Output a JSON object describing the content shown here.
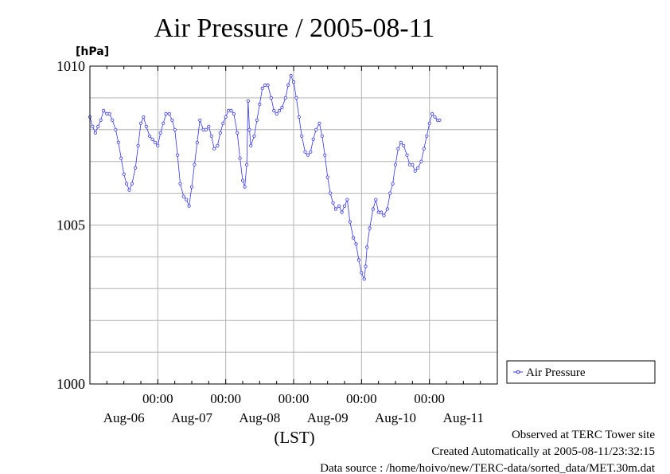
{
  "chart_data": {
    "type": "line",
    "title": "Air Pressure / 2005-08-11",
    "ylabel": "[hPa]",
    "xlabel": "(LST)",
    "ylim": [
      1000,
      1010
    ],
    "xlim": [
      0,
      6
    ],
    "y_ticks": [
      {
        "value": 1000,
        "label": "1000"
      },
      {
        "value": 1005,
        "label": "1005"
      },
      {
        "value": 1010,
        "label": "1010"
      }
    ],
    "y_minor_step": 1,
    "x_ticks": [
      {
        "value": 1,
        "label": "00:00"
      },
      {
        "value": 2,
        "label": "00:00"
      },
      {
        "value": 3,
        "label": "00:00"
      },
      {
        "value": 4,
        "label": "00:00"
      },
      {
        "value": 5,
        "label": "00:00"
      }
    ],
    "x_minor_step": 0.25,
    "day_labels": [
      {
        "value": 0.5,
        "label": "Aug-06"
      },
      {
        "value": 1.5,
        "label": "Aug-07"
      },
      {
        "value": 2.5,
        "label": "Aug-08"
      },
      {
        "value": 3.5,
        "label": "Aug-09"
      },
      {
        "value": 4.5,
        "label": "Aug-10"
      },
      {
        "value": 5.5,
        "label": "Aug-11"
      }
    ],
    "grid": true,
    "legend_position": "right",
    "series": [
      {
        "name": "Air Pressure",
        "color": "#3333ee",
        "points": [
          [
            0.0,
            1008.4
          ],
          [
            0.04,
            1008.1
          ],
          [
            0.08,
            1007.9
          ],
          [
            0.12,
            1008.1
          ],
          [
            0.16,
            1008.3
          ],
          [
            0.2,
            1008.6
          ],
          [
            0.25,
            1008.5
          ],
          [
            0.29,
            1008.5
          ],
          [
            0.33,
            1008.3
          ],
          [
            0.38,
            1008.0
          ],
          [
            0.42,
            1007.6
          ],
          [
            0.46,
            1007.1
          ],
          [
            0.5,
            1006.6
          ],
          [
            0.54,
            1006.3
          ],
          [
            0.58,
            1006.1
          ],
          [
            0.62,
            1006.3
          ],
          [
            0.67,
            1006.8
          ],
          [
            0.71,
            1007.5
          ],
          [
            0.75,
            1008.2
          ],
          [
            0.79,
            1008.4
          ],
          [
            0.83,
            1008.1
          ],
          [
            0.88,
            1007.8
          ],
          [
            0.92,
            1007.7
          ],
          [
            0.96,
            1007.6
          ],
          [
            1.0,
            1007.5
          ],
          [
            1.04,
            1007.9
          ],
          [
            1.08,
            1008.2
          ],
          [
            1.12,
            1008.5
          ],
          [
            1.17,
            1008.5
          ],
          [
            1.21,
            1008.3
          ],
          [
            1.25,
            1008.0
          ],
          [
            1.29,
            1007.2
          ],
          [
            1.33,
            1006.3
          ],
          [
            1.38,
            1005.9
          ],
          [
            1.42,
            1005.8
          ],
          [
            1.46,
            1005.6
          ],
          [
            1.5,
            1006.2
          ],
          [
            1.54,
            1006.9
          ],
          [
            1.58,
            1007.6
          ],
          [
            1.62,
            1008.3
          ],
          [
            1.67,
            1008.0
          ],
          [
            1.71,
            1008.0
          ],
          [
            1.75,
            1008.1
          ],
          [
            1.79,
            1007.8
          ],
          [
            1.83,
            1007.4
          ],
          [
            1.88,
            1007.5
          ],
          [
            1.92,
            1007.9
          ],
          [
            1.96,
            1008.2
          ],
          [
            2.0,
            1008.4
          ],
          [
            2.04,
            1008.6
          ],
          [
            2.08,
            1008.6
          ],
          [
            2.12,
            1008.5
          ],
          [
            2.17,
            1007.9
          ],
          [
            2.21,
            1007.1
          ],
          [
            2.25,
            1006.4
          ],
          [
            2.28,
            1006.2
          ],
          [
            2.31,
            1006.9
          ],
          [
            2.33,
            1008.9
          ],
          [
            2.35,
            1008.0
          ],
          [
            2.37,
            1007.5
          ],
          [
            2.42,
            1007.8
          ],
          [
            2.46,
            1008.3
          ],
          [
            2.5,
            1008.8
          ],
          [
            2.54,
            1009.3
          ],
          [
            2.58,
            1009.4
          ],
          [
            2.62,
            1009.4
          ],
          [
            2.67,
            1009.0
          ],
          [
            2.71,
            1008.6
          ],
          [
            2.75,
            1008.5
          ],
          [
            2.79,
            1008.6
          ],
          [
            2.83,
            1008.7
          ],
          [
            2.88,
            1009.0
          ],
          [
            2.92,
            1009.4
          ],
          [
            2.96,
            1009.7
          ],
          [
            3.0,
            1009.5
          ],
          [
            3.04,
            1009.0
          ],
          [
            3.08,
            1008.4
          ],
          [
            3.12,
            1007.8
          ],
          [
            3.17,
            1007.3
          ],
          [
            3.21,
            1007.2
          ],
          [
            3.25,
            1007.3
          ],
          [
            3.29,
            1007.7
          ],
          [
            3.33,
            1008.0
          ],
          [
            3.38,
            1008.2
          ],
          [
            3.42,
            1007.8
          ],
          [
            3.46,
            1007.2
          ],
          [
            3.5,
            1006.5
          ],
          [
            3.54,
            1006.0
          ],
          [
            3.58,
            1005.7
          ],
          [
            3.62,
            1005.5
          ],
          [
            3.67,
            1005.6
          ],
          [
            3.71,
            1005.4
          ],
          [
            3.75,
            1005.6
          ],
          [
            3.79,
            1005.8
          ],
          [
            3.83,
            1005.1
          ],
          [
            3.88,
            1004.6
          ],
          [
            3.92,
            1004.4
          ],
          [
            3.96,
            1003.9
          ],
          [
            4.0,
            1003.5
          ],
          [
            4.04,
            1003.3
          ],
          [
            4.06,
            1003.7
          ],
          [
            4.08,
            1004.3
          ],
          [
            4.12,
            1004.9
          ],
          [
            4.17,
            1005.5
          ],
          [
            4.21,
            1005.8
          ],
          [
            4.25,
            1005.4
          ],
          [
            4.29,
            1005.4
          ],
          [
            4.33,
            1005.3
          ],
          [
            4.38,
            1005.5
          ],
          [
            4.42,
            1006.0
          ],
          [
            4.46,
            1006.3
          ],
          [
            4.5,
            1006.9
          ],
          [
            4.54,
            1007.4
          ],
          [
            4.58,
            1007.6
          ],
          [
            4.62,
            1007.5
          ],
          [
            4.67,
            1007.2
          ],
          [
            4.71,
            1006.9
          ],
          [
            4.75,
            1006.9
          ],
          [
            4.79,
            1006.7
          ],
          [
            4.83,
            1006.8
          ],
          [
            4.88,
            1007.0
          ],
          [
            4.92,
            1007.4
          ],
          [
            4.96,
            1007.8
          ],
          [
            5.0,
            1008.2
          ],
          [
            5.04,
            1008.5
          ],
          [
            5.08,
            1008.4
          ],
          [
            5.12,
            1008.3
          ],
          [
            5.15,
            1008.3
          ]
        ]
      }
    ]
  },
  "footer": {
    "site": "Observed at TERC Tower site",
    "created": "Created Automatically at 2005-08-11/23:32:15",
    "source": "Data source : /home/hoivo/new/TERC-data/sorted_data/MET.30m.dat"
  }
}
